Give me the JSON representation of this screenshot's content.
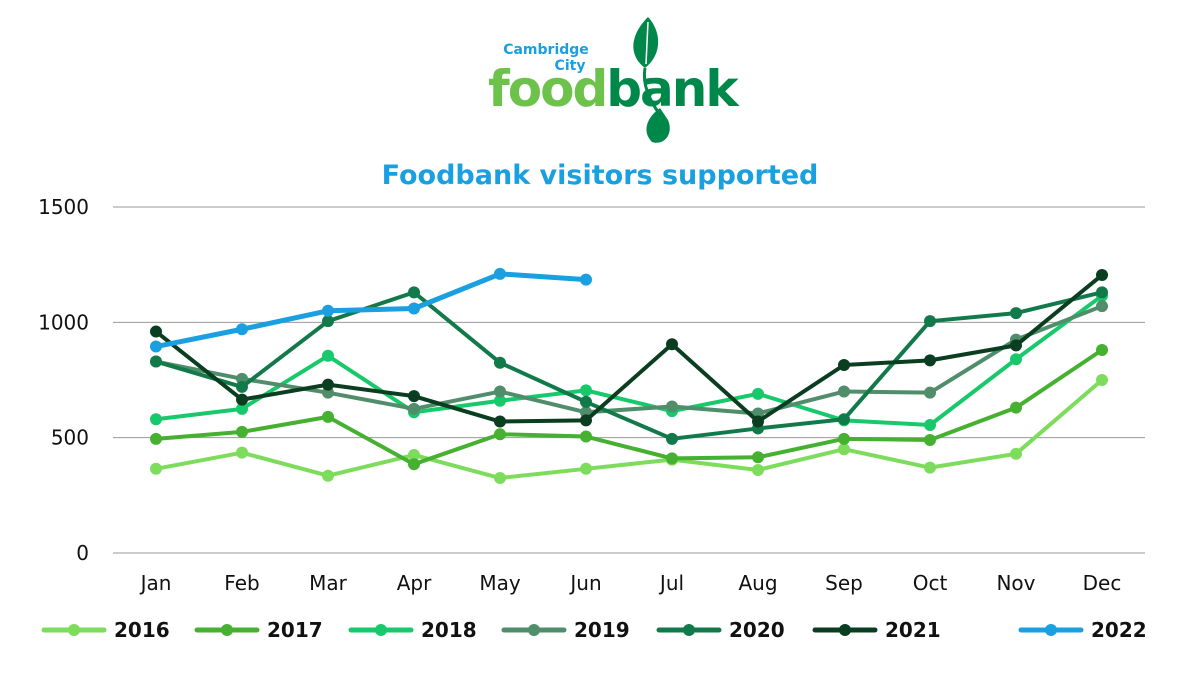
{
  "logo": {
    "line1": "Cambridge",
    "line2": "City",
    "word_a": "food",
    "word_b": "bank",
    "color_light": "#6cc24a",
    "color_dark": "#00884a",
    "color_blue": "#1a9fe0"
  },
  "chart_data": {
    "type": "line",
    "title": "Foodbank visitors supported",
    "xlabel": "",
    "ylabel": "",
    "categories": [
      "Jan",
      "Feb",
      "Mar",
      "Apr",
      "May",
      "Jun",
      "Jul",
      "Aug",
      "Sep",
      "Oct",
      "Nov",
      "Dec"
    ],
    "ylim": [
      0,
      1500
    ],
    "yticks": [
      0,
      500,
      1000,
      1500
    ],
    "grid": true,
    "legend_position": "bottom",
    "title_color": "#1aa0e0",
    "series": [
      {
        "name": "2016",
        "color": "#7ddc5c",
        "values": [
          365,
          435,
          335,
          425,
          325,
          365,
          405,
          360,
          450,
          370,
          430,
          750
        ]
      },
      {
        "name": "2017",
        "color": "#46b030",
        "values": [
          495,
          525,
          590,
          385,
          515,
          505,
          410,
          415,
          495,
          490,
          630,
          880
        ]
      },
      {
        "name": "2018",
        "color": "#17c96b",
        "values": [
          580,
          625,
          855,
          610,
          660,
          705,
          615,
          690,
          575,
          555,
          840,
          1115
        ]
      },
      {
        "name": "2019",
        "color": "#4f8d6b",
        "values": [
          830,
          755,
          695,
          625,
          700,
          610,
          635,
          605,
          700,
          695,
          925,
          1070
        ]
      },
      {
        "name": "2020",
        "color": "#127a4a",
        "values": [
          830,
          720,
          1005,
          1130,
          825,
          655,
          495,
          540,
          580,
          1005,
          1040,
          1130
        ]
      },
      {
        "name": "2021",
        "color": "#0b3d21",
        "values": [
          960,
          665,
          730,
          680,
          570,
          575,
          905,
          570,
          815,
          835,
          900,
          1205
        ]
      },
      {
        "name": "2022",
        "color": "#1a9fe0",
        "values": [
          895,
          970,
          1050,
          1060,
          1210,
          1185,
          null,
          null,
          null,
          null,
          null,
          null
        ]
      }
    ]
  }
}
